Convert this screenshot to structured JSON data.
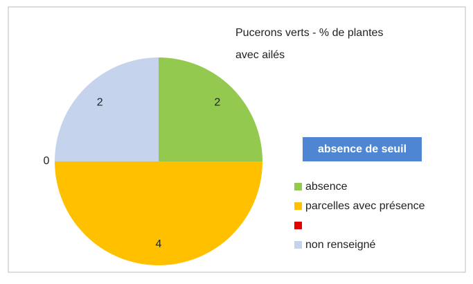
{
  "chart_data": {
    "type": "pie",
    "title": [
      "Pucerons verts - % de plantes",
      "avec ailés"
    ],
    "annotation": "absence de seuil",
    "categories": [
      "absence",
      "parcelles avec présence",
      null,
      "non renseigné"
    ],
    "values": [
      2,
      4,
      0,
      2
    ],
    "colors": [
      "#92c94e",
      "#ffc000",
      "#e00000",
      "#c5d3ec"
    ],
    "annotation_color": "#4f86d1"
  }
}
